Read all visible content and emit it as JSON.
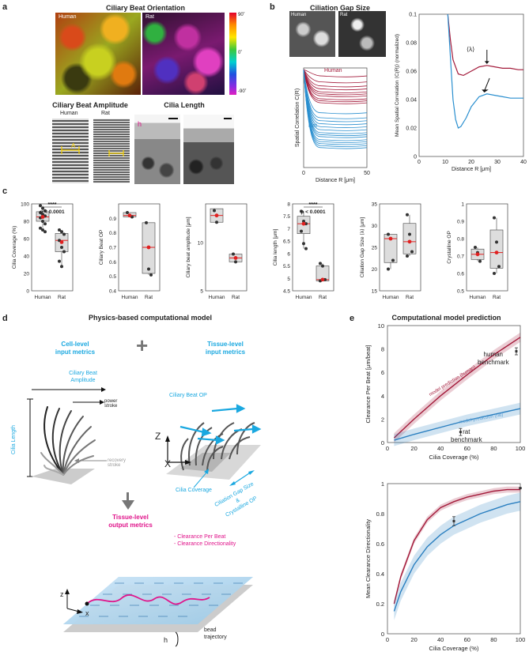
{
  "panels": {
    "a": "a",
    "b": "b",
    "c": "c",
    "d": "d",
    "e": "e"
  },
  "panel_a": {
    "title": "Ciliary Beat Orientation",
    "human": "Human",
    "rat": "Rat",
    "colorbar": [
      "90˚",
      "0˚",
      "-90˚"
    ],
    "amp_title": "Ciliary Beat Amplitude",
    "length_title": "Cilia Length",
    "amp_symbol": "A",
    "h_symbol": "h"
  },
  "panel_b": {
    "title": "Ciliation Gap Size",
    "human": "Human",
    "rat": "Rat",
    "corr_ylabel": "Spatial Correlation C(R)",
    "corr_xlabel": "Distance R [μm]",
    "corr_xticks": [
      "0",
      "50"
    ],
    "mean_ylabel": "Mean Spatial Correlation ⟨C(R)⟩ (normalized)",
    "mean_xlabel": "Distance R [μm]",
    "lambda_label": "⟨λ⟩"
  },
  "panel_c": {
    "human": "Human",
    "rat": "Rat",
    "sig": "****",
    "p": "p < 0.0001"
  },
  "panel_d": {
    "title": "Physics-based computational model",
    "cell_input": [
      "Cell-level",
      "input metrics"
    ],
    "tissue_input": [
      "Tissue-level",
      "input metrics"
    ],
    "plus": "+",
    "amp": [
      "Ciliary Beat",
      "Amplitude"
    ],
    "power": "power",
    "power2": "stroke",
    "recovery": "recovery",
    "recovery2": "stroke",
    "cilia_length": "Cilia Length",
    "beat_op": "Ciliary Beat OP",
    "coverage": "Cilia Coverage",
    "gap": [
      "Ciliation Gap Size",
      "&",
      "Crystalline OP"
    ],
    "z": "Z",
    "x": "X",
    "output": [
      "Tissue-level",
      "output metrics"
    ],
    "out_items": [
      "- Clearance Per Beat",
      "- Clearance Directionality"
    ],
    "z2": "z",
    "x2": "x",
    "h": "h",
    "bead": [
      "bead",
      "trajectory"
    ]
  },
  "panel_e": {
    "title": "Computational model prediction",
    "human_bench": [
      "human",
      "benchmark"
    ],
    "rat_bench": [
      "rat",
      "benchmark"
    ],
    "pred_human": "model prediction (human)",
    "pred_rat": "model prediction (rat)"
  },
  "chart_data": [
    {
      "type": "line",
      "title": "Spatial Correlation C(R) (individual samples)",
      "xlabel": "Distance R [μm]",
      "ylabel": "Spatial Correlation C(R)",
      "xlim": [
        0,
        50
      ],
      "series": [
        {
          "name": "Human",
          "color": "#a31a3a",
          "values_at_50": [
            0.92,
            0.86,
            0.82,
            0.79,
            0.76,
            0.74,
            0.72,
            0.69,
            0.67,
            0.65
          ]
        },
        {
          "name": "Rat",
          "color": "#2a8fcf",
          "values_at_50": [
            0.55,
            0.5,
            0.47,
            0.44,
            0.41,
            0.38,
            0.35,
            0.33,
            0.31,
            0.28,
            0.26,
            0.24,
            0.22,
            0.2
          ]
        }
      ]
    },
    {
      "type": "line",
      "title": "Mean spatial correlation",
      "xlabel": "Distance R [μm]",
      "ylabel": "Mean Spatial Correlation ⟨C(R)⟩ (normalized)",
      "xlim": [
        0,
        40
      ],
      "ylim": [
        0,
        0.1
      ],
      "xticks": [
        0,
        10,
        20,
        30,
        40
      ],
      "yticks": [
        0,
        0.02,
        0.04,
        0.06,
        0.08,
        0.1
      ],
      "series": [
        {
          "name": "Human",
          "color": "#a31a3a",
          "x": [
            11,
            12,
            13,
            15,
            17,
            20,
            23,
            26,
            29,
            32,
            35,
            38,
            40
          ],
          "y": [
            0.1,
            0.082,
            0.068,
            0.058,
            0.057,
            0.06,
            0.063,
            0.064,
            0.063,
            0.062,
            0.062,
            0.061,
            0.061
          ]
        },
        {
          "name": "Rat",
          "color": "#2a8fcf",
          "x": [
            11,
            12,
            13,
            14,
            15,
            16,
            18,
            20,
            23,
            26,
            29,
            32,
            35,
            38,
            40
          ],
          "y": [
            0.1,
            0.07,
            0.04,
            0.026,
            0.02,
            0.021,
            0.027,
            0.035,
            0.042,
            0.044,
            0.043,
            0.042,
            0.041,
            0.041,
            0.041
          ]
        }
      ]
    },
    {
      "type": "box",
      "ylabel": "Cilia Coverage (%)",
      "ylim": [
        0,
        100
      ],
      "yticks": [
        "0",
        "20",
        "40",
        "60",
        "80",
        "100"
      ],
      "categories": [
        "Human",
        "Rat"
      ],
      "boxes": [
        {
          "q1": 80,
          "median": 85,
          "q3": 91,
          "min": 72,
          "max": 98,
          "mean": 85,
          "points": [
            98,
            95,
            92,
            90,
            88,
            86,
            84,
            80,
            77,
            72,
            70,
            68
          ]
        },
        {
          "q1": 45,
          "median": 58,
          "q3": 66,
          "min": 28,
          "max": 70,
          "mean": 56,
          "points": [
            70,
            68,
            65,
            58,
            50,
            45,
            34,
            28
          ]
        }
      ],
      "sig": true
    },
    {
      "type": "box",
      "ylabel": "Ciliary Beat OP",
      "ylim": [
        0.4,
        1.0
      ],
      "yticks": [
        "0.4",
        "0.5",
        "0.6",
        "0.7",
        "0.8",
        "0.9"
      ],
      "categories": [
        "Human",
        "Rat"
      ],
      "boxes": [
        {
          "q1": 0.91,
          "median": 0.92,
          "q3": 0.94,
          "min": 0.91,
          "max": 0.94,
          "mean": 0.92,
          "points": [
            0.94,
            0.92,
            0.91
          ]
        },
        {
          "q1": 0.52,
          "median": 0.7,
          "q3": 0.87,
          "min": 0.51,
          "max": 0.87,
          "mean": 0.7,
          "points": [
            0.87,
            0.55,
            0.51
          ]
        }
      ],
      "sig": false
    },
    {
      "type": "box",
      "ylabel": "Ciliary beat amplitude [μm]",
      "ylim": [
        5,
        14
      ],
      "yticks": [
        "5",
        "10"
      ],
      "categories": [
        "Human",
        "Rat"
      ],
      "boxes": [
        {
          "q1": 12.1,
          "median": 12.8,
          "q3": 13.5,
          "min": 12.1,
          "max": 13.5,
          "mean": 12.8,
          "points": [
            13.3,
            12.1
          ]
        },
        {
          "q1": 8.0,
          "median": 8.4,
          "q3": 8.8,
          "min": 8.0,
          "max": 8.8,
          "mean": 8.4,
          "points": [
            8.8,
            8.0
          ]
        }
      ],
      "sig": false
    },
    {
      "type": "box",
      "ylabel": "Cilia length [μm]",
      "ylim": [
        4.5,
        8
      ],
      "yticks": [
        "4.5",
        "5",
        "5.5",
        "6",
        "6.5",
        "7",
        "7.5",
        "8"
      ],
      "categories": [
        "Human",
        "Rat"
      ],
      "boxes": [
        {
          "q1": 6.8,
          "median": 7.2,
          "q3": 7.5,
          "min": 6.2,
          "max": 7.7,
          "mean": 7.2,
          "points": [
            7.7,
            7.3,
            7.2,
            6.9,
            6.4,
            6.2
          ]
        },
        {
          "q1": 4.9,
          "median": 4.95,
          "q3": 5.5,
          "min": 4.9,
          "max": 5.6,
          "mean": 4.95,
          "points": [
            5.6,
            5.5,
            4.95,
            4.9
          ]
        }
      ],
      "sig": true
    },
    {
      "type": "box",
      "ylabel": "Ciliation Gap Size ⟨λ⟩ [μm]",
      "ylim": [
        15,
        35
      ],
      "yticks": [
        "15",
        "20",
        "25",
        "30",
        "35"
      ],
      "categories": [
        "Human",
        "Rat"
      ],
      "boxes": [
        {
          "q1": 21.5,
          "median": 27,
          "q3": 28,
          "min": 20,
          "max": 28,
          "mean": 27,
          "points": [
            28,
            27,
            22,
            20
          ]
        },
        {
          "q1": 23.5,
          "median": 26.3,
          "q3": 30.5,
          "min": 23,
          "max": 32.5,
          "mean": 26.3,
          "points": [
            32.5,
            28,
            24,
            23
          ]
        }
      ],
      "sig": false
    },
    {
      "type": "box",
      "ylabel": "Crystalline OP",
      "ylim": [
        0.5,
        1.0
      ],
      "yticks": [
        "0.5",
        "0.6",
        "0.7",
        "0.8",
        "0.9",
        "1"
      ],
      "categories": [
        "Human",
        "Rat"
      ],
      "boxes": [
        {
          "q1": 0.68,
          "median": 0.71,
          "q3": 0.74,
          "min": 0.67,
          "max": 0.75,
          "mean": 0.71,
          "points": [
            0.75,
            0.72,
            0.67
          ]
        },
        {
          "q1": 0.63,
          "median": 0.72,
          "q3": 0.85,
          "min": 0.6,
          "max": 0.92,
          "mean": 0.72,
          "points": [
            0.92,
            0.78,
            0.64,
            0.6
          ]
        }
      ],
      "sig": false
    },
    {
      "type": "line",
      "ylabel": "Clearance Per Beat [μm/beat]",
      "xlabel": "Cilia Coverage (%)",
      "xlim": [
        0,
        100
      ],
      "ylim": [
        0,
        10
      ],
      "xticks": [
        "0",
        "20",
        "40",
        "60",
        "80",
        "100"
      ],
      "yticks": [
        "0",
        "2",
        "4",
        "6",
        "8",
        "10"
      ],
      "series": [
        {
          "name": "model prediction (human)",
          "color": "#a31a3a",
          "x": [
            5,
            20,
            40,
            60,
            80,
            100
          ],
          "y": [
            0.4,
            2.0,
            4.0,
            5.8,
            7.5,
            9.0
          ],
          "band": 0.4
        },
        {
          "name": "model prediction (rat)",
          "color": "#2a7fc0",
          "x": [
            5,
            20,
            40,
            60,
            80,
            100
          ],
          "y": [
            0.2,
            0.7,
            1.3,
            1.9,
            2.4,
            2.9
          ],
          "band": 0.5
        }
      ],
      "benchmarks": [
        {
          "name": "human benchmark",
          "x": 97,
          "y": 7.8,
          "err": 0.3
        },
        {
          "name": "rat benchmark",
          "x": 55,
          "y": 0.9,
          "err": 0.3
        }
      ]
    },
    {
      "type": "line",
      "ylabel": "Mean Clearance Directionality",
      "xlabel": "Cilia Coverage (%)",
      "xlim": [
        0,
        100
      ],
      "ylim": [
        0,
        1
      ],
      "xticks": [
        "0",
        "20",
        "40",
        "60",
        "80",
        "100"
      ],
      "yticks": [
        "0",
        "0.2",
        "0.4",
        "0.6",
        "0.8",
        "1"
      ],
      "series": [
        {
          "name": "human",
          "color": "#a31a3a",
          "x": [
            5,
            10,
            20,
            30,
            40,
            50,
            60,
            70,
            80,
            90,
            100
          ],
          "y": [
            0.2,
            0.38,
            0.62,
            0.76,
            0.84,
            0.88,
            0.91,
            0.93,
            0.95,
            0.96,
            0.96
          ],
          "band": 0.02
        },
        {
          "name": "rat",
          "color": "#2a7fc0",
          "x": [
            5,
            10,
            20,
            30,
            40,
            50,
            60,
            70,
            80,
            90,
            100
          ],
          "y": [
            0.15,
            0.28,
            0.46,
            0.58,
            0.66,
            0.72,
            0.76,
            0.8,
            0.83,
            0.86,
            0.88
          ],
          "band": 0.06
        }
      ],
      "benchmarks": [
        {
          "name": "rat",
          "x": 50,
          "y": 0.75,
          "err": 0.03
        },
        {
          "name": "human",
          "x": 100,
          "y": 0.97,
          "err": 0.0
        }
      ]
    }
  ]
}
